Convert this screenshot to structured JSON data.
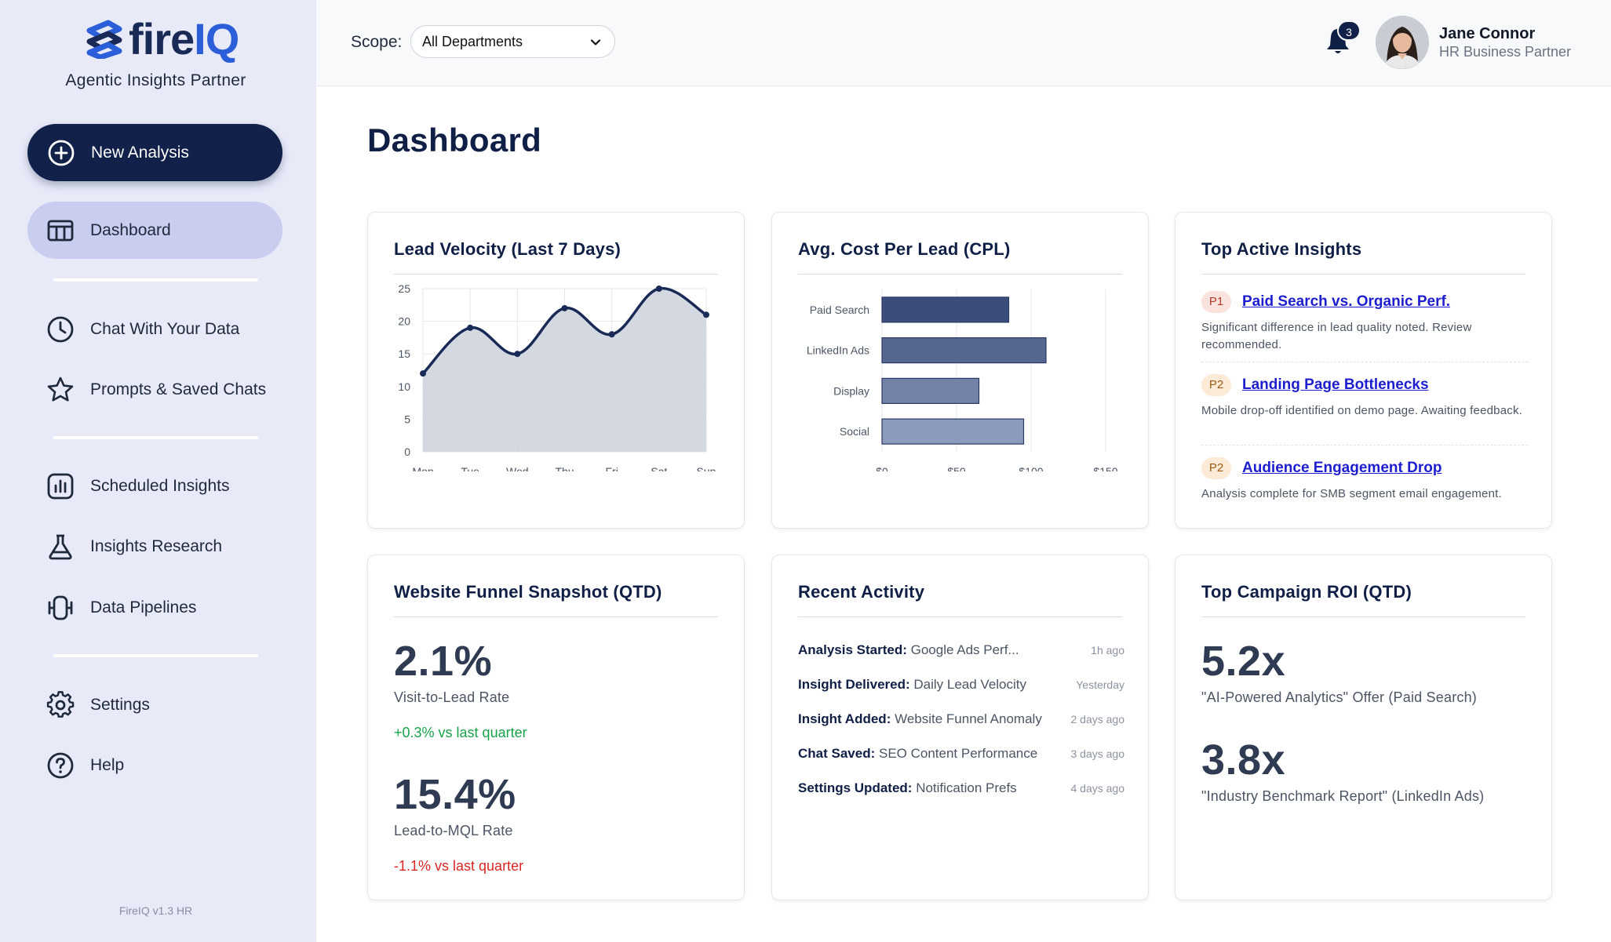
{
  "brand": {
    "logo_part1": "fire",
    "logo_part2": "IQ",
    "tagline": "Agentic Insights Partner",
    "version": "FireIQ v1.3 HR",
    "accent_color": "#12214a"
  },
  "sidebar": {
    "new_analysis_label": "New Analysis",
    "items": [
      {
        "label": "Dashboard",
        "icon": "table-icon",
        "active": true
      },
      {
        "label": "Chat With Your Data",
        "icon": "clock-icon"
      },
      {
        "label": "Prompts & Saved Chats",
        "icon": "star-icon"
      },
      {
        "label": "Scheduled Insights",
        "icon": "bar-chart-icon"
      },
      {
        "label": "Insights Research",
        "icon": "flask-icon"
      },
      {
        "label": "Data Pipelines",
        "icon": "pipeline-icon"
      },
      {
        "label": "Settings",
        "icon": "gear-icon"
      },
      {
        "label": "Help",
        "icon": "help-icon"
      }
    ]
  },
  "header": {
    "scope_label": "Scope:",
    "scope_value": "All Departments",
    "notification_count": "3",
    "user_name": "Jane Connor",
    "user_role": "HR Business Partner"
  },
  "page": {
    "title": "Dashboard"
  },
  "cards": {
    "lead_velocity_title": "Lead Velocity (Last 7 Days)",
    "cpl_title": "Avg. Cost Per Lead (CPL)",
    "insights_title": "Top Active Insights",
    "funnel_title": "Website Funnel Snapshot (QTD)",
    "activity_title": "Recent Activity",
    "roi_title": "Top Campaign ROI (QTD)"
  },
  "insights": [
    {
      "priority": "P1",
      "title": "Paid Search vs. Organic Perf.",
      "description": "Significant difference in lead quality noted. Review recommended."
    },
    {
      "priority": "P2",
      "title": "Landing Page Bottlenecks",
      "description": "Mobile drop-off identified on demo page. Awaiting feedback."
    },
    {
      "priority": "P2",
      "title": "Audience Engagement Drop",
      "description": "Analysis complete for SMB segment email engagement."
    }
  ],
  "funnel": {
    "visit_to_lead_value": "2.1%",
    "visit_to_lead_label": "Visit-to-Lead Rate",
    "visit_to_lead_delta": "+0.3% vs last quarter",
    "lead_to_mql_value": "15.4%",
    "lead_to_mql_label": "Lead-to-MQL Rate",
    "lead_to_mql_delta": "-1.1% vs last quarter"
  },
  "activity": [
    {
      "label": "Analysis Started:",
      "detail": "Google Ads Perf...",
      "time": "1h ago"
    },
    {
      "label": "Insight Delivered:",
      "detail": "Daily Lead Velocity",
      "time": "Yesterday"
    },
    {
      "label": "Insight Added:",
      "detail": "Website Funnel Anomaly",
      "time": "2 days ago"
    },
    {
      "label": "Chat Saved:",
      "detail": "SEO Content Performance",
      "time": "3 days ago"
    },
    {
      "label": "Settings Updated:",
      "detail": "Notification Prefs",
      "time": "4 days ago"
    }
  ],
  "roi": [
    {
      "value": "5.2x",
      "label": "\"AI-Powered Analytics\" Offer (Paid Search)"
    },
    {
      "value": "3.8x",
      "label": "\"Industry Benchmark Report\" (LinkedIn Ads)"
    }
  ],
  "chart_data": [
    {
      "type": "area",
      "title": "Lead Velocity (Last 7 Days)",
      "categories": [
        "Mon",
        "Tue",
        "Wed",
        "Thu",
        "Fri",
        "Sat",
        "Sun"
      ],
      "values": [
        12,
        19,
        15,
        22,
        18,
        25,
        21
      ],
      "ylim": [
        0,
        25
      ],
      "yticks": [
        0,
        5,
        10,
        15,
        20,
        25
      ],
      "line_color": "#1a2a57",
      "fill_color": "#cdd2dc"
    },
    {
      "type": "bar",
      "orientation": "horizontal",
      "title": "Avg. Cost Per Lead (CPL)",
      "categories": [
        "Paid Search",
        "LinkedIn Ads",
        "Display",
        "Social"
      ],
      "values": [
        85,
        110,
        65,
        95
      ],
      "xlim": [
        0,
        150
      ],
      "xticks": [
        "$0",
        "$50",
        "$100",
        "$150"
      ],
      "xtick_values": [
        0,
        50,
        100,
        150
      ],
      "colors": [
        "#3b4d7a",
        "#56678f",
        "#7283a7",
        "#8c9abb"
      ]
    }
  ]
}
